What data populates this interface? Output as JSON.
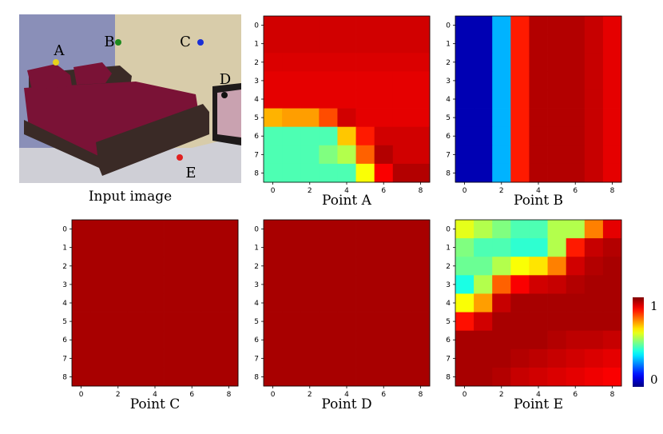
{
  "input_panel": {
    "caption": "Input image",
    "points": [
      {
        "label": "A",
        "color": "#e6d21c"
      },
      {
        "label": "B",
        "color": "#1f8a1f"
      },
      {
        "label": "C",
        "color": "#1a2fd6"
      },
      {
        "label": "D",
        "color": "#111111"
      },
      {
        "label": "E",
        "color": "#e02020"
      }
    ],
    "photo_palette": {
      "wall": "#d8ccaa",
      "wall_left": "#8a8fb8",
      "bedspread": "#7a1236",
      "frame": "#3a2a26",
      "floor": "#cfcfd6",
      "art": "#c9a2b0"
    }
  },
  "colormap": "jet",
  "colorbar": {
    "min_label": "0",
    "max_label": "1"
  },
  "chart_data": [
    {
      "type": "heatmap",
      "title": "Point A",
      "x_ticks": [
        "0",
        "2",
        "4",
        "6",
        "8"
      ],
      "y_ticks": [
        "0",
        "1",
        "2",
        "3",
        "4",
        "5",
        "6",
        "7",
        "8"
      ],
      "values": [
        [
          0.92,
          0.92,
          0.92,
          0.92,
          0.92,
          0.92,
          0.92,
          0.92,
          0.92
        ],
        [
          0.92,
          0.92,
          0.92,
          0.92,
          0.92,
          0.92,
          0.92,
          0.92,
          0.92
        ],
        [
          0.91,
          0.91,
          0.91,
          0.91,
          0.91,
          0.91,
          0.91,
          0.91,
          0.91
        ],
        [
          0.9,
          0.9,
          0.9,
          0.9,
          0.9,
          0.9,
          0.9,
          0.9,
          0.9
        ],
        [
          0.9,
          0.9,
          0.9,
          0.9,
          0.9,
          0.9,
          0.9,
          0.9,
          0.9
        ],
        [
          0.7,
          0.72,
          0.72,
          0.8,
          0.92,
          0.9,
          0.9,
          0.9,
          0.9
        ],
        [
          0.45,
          0.45,
          0.45,
          0.45,
          0.68,
          0.85,
          0.92,
          0.92,
          0.92
        ],
        [
          0.45,
          0.45,
          0.45,
          0.5,
          0.55,
          0.78,
          0.95,
          0.92,
          0.92
        ],
        [
          0.45,
          0.45,
          0.45,
          0.45,
          0.45,
          0.62,
          0.88,
          0.95,
          0.95
        ]
      ]
    },
    {
      "type": "heatmap",
      "title": "Point B",
      "x_ticks": [
        "0",
        "2",
        "4",
        "6",
        "8"
      ],
      "y_ticks": [
        "0",
        "1",
        "2",
        "3",
        "4",
        "5",
        "6",
        "7",
        "8"
      ],
      "values": [
        [
          0.05,
          0.05,
          0.3,
          0.85,
          0.95,
          0.95,
          0.95,
          0.93,
          0.9
        ],
        [
          0.05,
          0.05,
          0.3,
          0.85,
          0.95,
          0.95,
          0.95,
          0.93,
          0.9
        ],
        [
          0.05,
          0.05,
          0.3,
          0.85,
          0.95,
          0.95,
          0.95,
          0.93,
          0.9
        ],
        [
          0.05,
          0.05,
          0.3,
          0.85,
          0.95,
          0.95,
          0.95,
          0.93,
          0.9
        ],
        [
          0.05,
          0.05,
          0.3,
          0.85,
          0.95,
          0.95,
          0.95,
          0.93,
          0.9
        ],
        [
          0.05,
          0.05,
          0.3,
          0.85,
          0.95,
          0.95,
          0.95,
          0.93,
          0.9
        ],
        [
          0.05,
          0.05,
          0.3,
          0.85,
          0.95,
          0.95,
          0.95,
          0.93,
          0.9
        ],
        [
          0.05,
          0.05,
          0.3,
          0.85,
          0.95,
          0.95,
          0.95,
          0.93,
          0.9
        ],
        [
          0.05,
          0.05,
          0.3,
          0.85,
          0.95,
          0.95,
          0.95,
          0.93,
          0.9
        ]
      ]
    },
    {
      "type": "heatmap",
      "title": "Point C",
      "x_ticks": [
        "0",
        "2",
        "4",
        "6",
        "8"
      ],
      "y_ticks": [
        "0",
        "1",
        "2",
        "3",
        "4",
        "5",
        "6",
        "7",
        "8"
      ],
      "values": [
        [
          0.96,
          0.96,
          0.96,
          0.96,
          0.96,
          0.96,
          0.96,
          0.96,
          0.96
        ],
        [
          0.96,
          0.96,
          0.96,
          0.96,
          0.96,
          0.96,
          0.96,
          0.96,
          0.96
        ],
        [
          0.96,
          0.96,
          0.96,
          0.96,
          0.96,
          0.96,
          0.96,
          0.96,
          0.96
        ],
        [
          0.96,
          0.96,
          0.96,
          0.96,
          0.96,
          0.96,
          0.96,
          0.96,
          0.96
        ],
        [
          0.96,
          0.96,
          0.96,
          0.96,
          0.96,
          0.96,
          0.96,
          0.96,
          0.96
        ],
        [
          0.96,
          0.96,
          0.96,
          0.96,
          0.96,
          0.96,
          0.96,
          0.96,
          0.96
        ],
        [
          0.96,
          0.96,
          0.96,
          0.96,
          0.96,
          0.96,
          0.96,
          0.96,
          0.96
        ],
        [
          0.96,
          0.96,
          0.96,
          0.96,
          0.96,
          0.96,
          0.96,
          0.96,
          0.96
        ],
        [
          0.96,
          0.96,
          0.96,
          0.96,
          0.96,
          0.96,
          0.96,
          0.96,
          0.96
        ]
      ]
    },
    {
      "type": "heatmap",
      "title": "Point D",
      "x_ticks": [
        "0",
        "2",
        "4",
        "6",
        "8"
      ],
      "y_ticks": [
        "0",
        "1",
        "2",
        "3",
        "4",
        "5",
        "6",
        "7",
        "8"
      ],
      "values": [
        [
          0.96,
          0.96,
          0.96,
          0.96,
          0.96,
          0.96,
          0.96,
          0.96,
          0.96
        ],
        [
          0.96,
          0.96,
          0.96,
          0.96,
          0.96,
          0.96,
          0.96,
          0.96,
          0.96
        ],
        [
          0.96,
          0.96,
          0.96,
          0.96,
          0.96,
          0.96,
          0.96,
          0.96,
          0.96
        ],
        [
          0.96,
          0.96,
          0.96,
          0.96,
          0.96,
          0.96,
          0.96,
          0.96,
          0.96
        ],
        [
          0.96,
          0.96,
          0.96,
          0.96,
          0.96,
          0.96,
          0.96,
          0.96,
          0.96
        ],
        [
          0.96,
          0.96,
          0.96,
          0.96,
          0.96,
          0.96,
          0.96,
          0.96,
          0.96
        ],
        [
          0.96,
          0.96,
          0.96,
          0.96,
          0.96,
          0.96,
          0.96,
          0.96,
          0.96
        ],
        [
          0.96,
          0.96,
          0.96,
          0.96,
          0.96,
          0.96,
          0.96,
          0.96,
          0.96
        ],
        [
          0.96,
          0.96,
          0.96,
          0.96,
          0.96,
          0.96,
          0.96,
          0.96,
          0.96
        ]
      ]
    },
    {
      "type": "heatmap",
      "title": "Point E",
      "x_ticks": [
        "0",
        "2",
        "4",
        "6",
        "8"
      ],
      "y_ticks": [
        "0",
        "1",
        "2",
        "3",
        "4",
        "5",
        "6",
        "7",
        "8"
      ],
      "values": [
        [
          0.6,
          0.55,
          0.5,
          0.45,
          0.45,
          0.55,
          0.55,
          0.75,
          0.9
        ],
        [
          0.5,
          0.45,
          0.45,
          0.42,
          0.42,
          0.55,
          0.85,
          0.93,
          0.95
        ],
        [
          0.48,
          0.48,
          0.55,
          0.62,
          0.65,
          0.75,
          0.92,
          0.95,
          0.96
        ],
        [
          0.4,
          0.55,
          0.78,
          0.88,
          0.92,
          0.93,
          0.95,
          0.96,
          0.96
        ],
        [
          0.62,
          0.72,
          0.93,
          0.96,
          0.96,
          0.96,
          0.96,
          0.96,
          0.96
        ],
        [
          0.86,
          0.92,
          0.96,
          0.96,
          0.96,
          0.96,
          0.96,
          0.96,
          0.96
        ],
        [
          0.96,
          0.96,
          0.96,
          0.96,
          0.96,
          0.95,
          0.94,
          0.94,
          0.93
        ],
        [
          0.96,
          0.96,
          0.96,
          0.95,
          0.94,
          0.93,
          0.92,
          0.91,
          0.9
        ],
        [
          0.96,
          0.96,
          0.95,
          0.93,
          0.92,
          0.91,
          0.9,
          0.89,
          0.88
        ]
      ]
    }
  ]
}
